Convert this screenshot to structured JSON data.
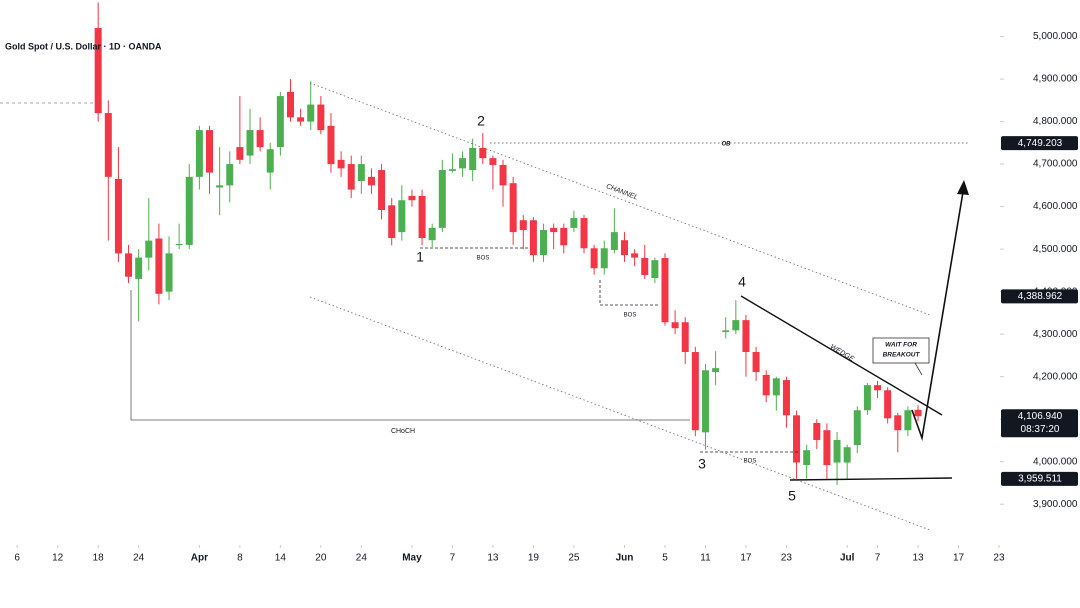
{
  "chart_data": {
    "type": "candlestick",
    "title": "Gold Spot / U.S. Dollar · 1D · OANDA",
    "up_color": "#4caf50",
    "down_color": "#f23645",
    "ylim": [
      3804,
      5086
    ],
    "yticks": [
      {
        "value": 3900,
        "label": "3,900.000"
      },
      {
        "value": 4000,
        "label": "4,000.000"
      },
      {
        "value": 4100,
        "label": "4,100.000"
      },
      {
        "value": 4200,
        "label": "4,200.000"
      },
      {
        "value": 4300,
        "label": "4,300.000"
      },
      {
        "value": 4400,
        "label": "4,400.000"
      },
      {
        "value": 4500,
        "label": "4,500.000"
      },
      {
        "value": 4600,
        "label": "4,600.000"
      },
      {
        "value": 4700,
        "label": "4,700.000"
      },
      {
        "value": 4800,
        "label": "4,800.000"
      },
      {
        "value": 4900,
        "label": "4,900.000"
      },
      {
        "value": 5000,
        "label": "5,000.000"
      }
    ],
    "xlim": [
      -9.7,
      89.1
    ],
    "xticks": [
      {
        "value": -8,
        "label": "6"
      },
      {
        "value": -4,
        "label": "12"
      },
      {
        "value": 0,
        "label": "18"
      },
      {
        "value": 4,
        "label": "24"
      },
      {
        "value": 10,
        "label": "Apr"
      },
      {
        "value": 14,
        "label": "8"
      },
      {
        "value": 18,
        "label": "14"
      },
      {
        "value": 22,
        "label": "20"
      },
      {
        "value": 26,
        "label": "24"
      },
      {
        "value": 31,
        "label": "May"
      },
      {
        "value": 35,
        "label": "7"
      },
      {
        "value": 39,
        "label": "13"
      },
      {
        "value": 43,
        "label": "19"
      },
      {
        "value": 47,
        "label": "25"
      },
      {
        "value": 52,
        "label": "Jun"
      },
      {
        "value": 56,
        "label": "5"
      },
      {
        "value": 60,
        "label": "11"
      },
      {
        "value": 64,
        "label": "17"
      },
      {
        "value": 68,
        "label": "23"
      },
      {
        "value": 74,
        "label": "Jul"
      },
      {
        "value": 77,
        "label": "7"
      },
      {
        "value": 81,
        "label": "13"
      },
      {
        "value": 85,
        "label": "17"
      },
      {
        "value": 89,
        "label": "23"
      }
    ],
    "series": {
      "open": [
        5020,
        4820,
        4665,
        4490,
        4430,
        4480,
        4525,
        4400,
        4510,
        4510,
        4670,
        4780,
        4645,
        4650,
        4740,
        4720,
        4780,
        4680,
        4740,
        4870,
        4810,
        4800,
        4840,
        4790,
        4710,
        4700,
        4660,
        4670,
        4686,
        4603,
        4540,
        4625,
        4625,
        4521,
        4550,
        4684,
        4690,
        4686,
        4738,
        4714,
        4698,
        4655,
        4568,
        4568,
        4486,
        4550,
        4550,
        4550,
        4573,
        4502,
        4455,
        4498,
        4521,
        4490,
        4479,
        4432,
        4479,
        4328,
        4328,
        4258,
        4069,
        4211,
        4305,
        4309,
        4333,
        4258,
        4204,
        4156,
        4192,
        4109,
        3992,
        4091,
        4074,
        3998,
        3998,
        4039,
        4121,
        4180,
        4168,
        4109,
        4074,
        4122
      ],
      "high": [
        5080,
        4850,
        4740,
        4510,
        4500,
        4620,
        4560,
        4530,
        4560,
        4700,
        4790,
        4790,
        4740,
        4730,
        4860,
        4830,
        4810,
        4750,
        4870,
        4900,
        4830,
        4895,
        4860,
        4820,
        4730,
        4720,
        4720,
        4690,
        4700,
        4620,
        4650,
        4640,
        4640,
        4560,
        4710,
        4725,
        4730,
        4760,
        4773,
        4720,
        4710,
        4670,
        4580,
        4575,
        4560,
        4560,
        4560,
        4590,
        4580,
        4510,
        4520,
        4596,
        4540,
        4500,
        4510,
        4480,
        4490,
        4356,
        4340,
        4270,
        4230,
        4260,
        4340,
        4380,
        4345,
        4270,
        4215,
        4200,
        4200,
        4120,
        4040,
        4100,
        4090,
        4070,
        4040,
        4130,
        4185,
        4190,
        4175,
        4115,
        4130,
        4133
      ],
      "low": [
        4800,
        4520,
        4470,
        4420,
        4330,
        4450,
        4370,
        4380,
        4500,
        4500,
        4640,
        4630,
        4580,
        4610,
        4700,
        4700,
        4730,
        4640,
        4720,
        4800,
        4790,
        4780,
        4770,
        4680,
        4670,
        4620,
        4630,
        4630,
        4570,
        4509,
        4520,
        4600,
        4509,
        4505,
        4540,
        4680,
        4670,
        4660,
        4700,
        4640,
        4600,
        4510,
        4500,
        4470,
        4470,
        4500,
        4490,
        4540,
        4490,
        4440,
        4440,
        4490,
        4470,
        4460,
        4430,
        4420,
        4320,
        4300,
        4230,
        4060,
        4028,
        4180,
        4290,
        4300,
        4200,
        4190,
        4140,
        4120,
        4080,
        3960,
        3960,
        4030,
        3960,
        3945,
        3960,
        4020,
        4110,
        4150,
        4090,
        4022,
        4060,
        4095
      ],
      "close": [
        4820,
        4670,
        4490,
        4435,
        4480,
        4520,
        4395,
        4490,
        4512,
        4670,
        4780,
        4680,
        4650,
        4700,
        4710,
        4780,
        4740,
        4735,
        4860,
        4810,
        4800,
        4840,
        4780,
        4700,
        4690,
        4640,
        4700,
        4650,
        4592,
        4526,
        4615,
        4615,
        4526,
        4550,
        4686,
        4688,
        4714,
        4738,
        4714,
        4698,
        4650,
        4540,
        4545,
        4486,
        4545,
        4540,
        4509,
        4573,
        4502,
        4455,
        4502,
        4540,
        4486,
        4480,
        4439,
        4474,
        4328,
        4314,
        4258,
        4074,
        4215,
        4220,
        4309,
        4333,
        4258,
        4211,
        4156,
        4196,
        4109,
        3998,
        4027,
        4051,
        3992,
        4051,
        4034,
        4121,
        4180,
        4168,
        4102,
        4074,
        4121,
        4106.94
      ]
    },
    "price_labels": [
      {
        "value": 4749.203,
        "label": "4,749.203"
      },
      {
        "value": 4388.962,
        "label": "4,388.962"
      },
      {
        "value": 4106.94,
        "label": "4,106.940",
        "countdown": "08:37:20"
      },
      {
        "value": 3959.511,
        "label": "3,959.511"
      }
    ],
    "annotations": {
      "waves": [
        "1",
        "2",
        "3",
        "4",
        "5"
      ],
      "channel": "CHANNEL",
      "wedge": "WEDGE",
      "ob": "OB",
      "bos": [
        "BOS",
        "BOS",
        "BOS"
      ],
      "choch": "CHoCH",
      "callout": [
        "WAIT FOR",
        "BREAKOUT"
      ]
    }
  }
}
